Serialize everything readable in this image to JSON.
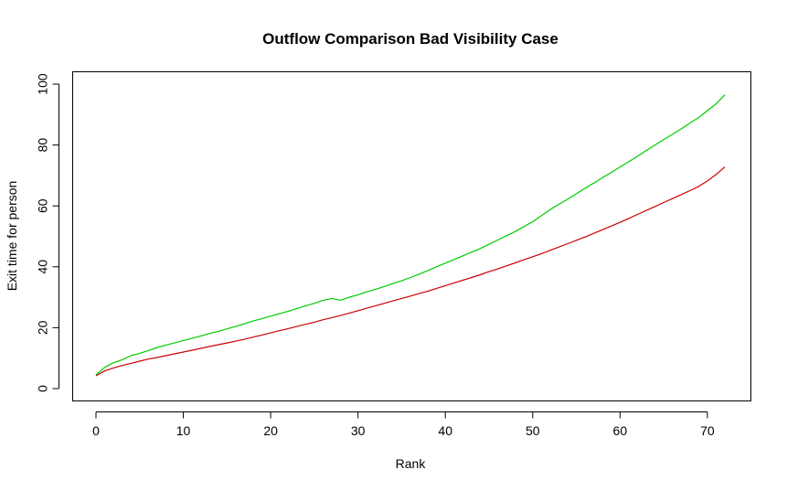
{
  "chart_data": {
    "type": "line",
    "title": "Outflow Comparison Bad Visibility Case",
    "xlabel": "Rank",
    "ylabel": "Exit time for person",
    "xlim": [
      0,
      72
    ],
    "ylim": [
      0,
      100
    ],
    "xticks": [
      0,
      10,
      20,
      30,
      40,
      50,
      60,
      70
    ],
    "yticks": [
      0,
      20,
      40,
      60,
      80,
      100
    ],
    "grid": false,
    "series": [
      {
        "color": "#00cc00",
        "x": [
          0,
          1,
          2,
          3,
          4,
          5,
          6,
          7,
          8,
          9,
          10,
          11,
          12,
          13,
          14,
          15,
          16,
          17,
          18,
          19,
          20,
          21,
          22,
          23,
          24,
          25,
          26,
          27,
          28,
          29,
          30,
          31,
          32,
          33,
          34,
          35,
          36,
          37,
          38,
          39,
          40,
          41,
          42,
          43,
          44,
          45,
          46,
          47,
          48,
          49,
          50,
          51,
          52,
          53,
          54,
          55,
          56,
          57,
          58,
          59,
          60,
          61,
          62,
          63,
          64,
          65,
          66,
          67,
          68,
          69,
          70,
          71,
          72
        ],
        "y": [
          4.5,
          7.0,
          8.5,
          9.5,
          10.8,
          11.6,
          12.5,
          13.5,
          14.3,
          15.0,
          15.8,
          16.5,
          17.3,
          18.1,
          18.8,
          19.6,
          20.4,
          21.3,
          22.2,
          23.0,
          23.8,
          24.6,
          25.4,
          26.3,
          27.2,
          28.0,
          29.0,
          29.6,
          29.0,
          30.0,
          30.8,
          31.8,
          32.6,
          33.5,
          34.5,
          35.4,
          36.5,
          37.6,
          38.8,
          40.0,
          41.2,
          42.4,
          43.6,
          44.8,
          46.0,
          47.4,
          48.8,
          50.2,
          51.6,
          53.2,
          54.8,
          56.8,
          58.8,
          60.5,
          62.2,
          64.0,
          65.8,
          67.5,
          69.3,
          71.0,
          72.8,
          74.5,
          76.3,
          78.2,
          80.0,
          81.8,
          83.5,
          85.3,
          87.2,
          89.0,
          91.3,
          93.5,
          96.5
        ]
      },
      {
        "color": "#cc0000",
        "x": [
          0,
          1,
          2,
          3,
          4,
          5,
          6,
          7,
          8,
          9,
          10,
          11,
          12,
          13,
          14,
          15,
          16,
          17,
          18,
          19,
          20,
          21,
          22,
          23,
          24,
          25,
          26,
          27,
          28,
          29,
          30,
          31,
          32,
          33,
          34,
          35,
          36,
          37,
          38,
          39,
          40,
          41,
          42,
          43,
          44,
          45,
          46,
          47,
          48,
          49,
          50,
          51,
          52,
          53,
          54,
          55,
          56,
          57,
          58,
          59,
          60,
          61,
          62,
          63,
          64,
          65,
          66,
          67,
          68,
          69,
          70,
          71,
          72
        ],
        "y": [
          4.2,
          5.8,
          6.8,
          7.6,
          8.3,
          9.0,
          9.7,
          10.2,
          10.8,
          11.4,
          12.0,
          12.6,
          13.2,
          13.8,
          14.4,
          15.0,
          15.6,
          16.2,
          16.9,
          17.6,
          18.3,
          19.0,
          19.7,
          20.4,
          21.1,
          21.8,
          22.6,
          23.3,
          24.0,
          24.8,
          25.6,
          26.4,
          27.2,
          28.0,
          28.8,
          29.6,
          30.4,
          31.2,
          32.0,
          32.9,
          33.8,
          34.7,
          35.6,
          36.5,
          37.4,
          38.4,
          39.3,
          40.3,
          41.3,
          42.3,
          43.3,
          44.3,
          45.4,
          46.5,
          47.6,
          48.7,
          49.8,
          51.0,
          52.2,
          53.4,
          54.6,
          55.9,
          57.2,
          58.5,
          59.8,
          61.1,
          62.4,
          63.7,
          65.0,
          66.4,
          68.2,
          70.3,
          72.8
        ]
      }
    ]
  }
}
